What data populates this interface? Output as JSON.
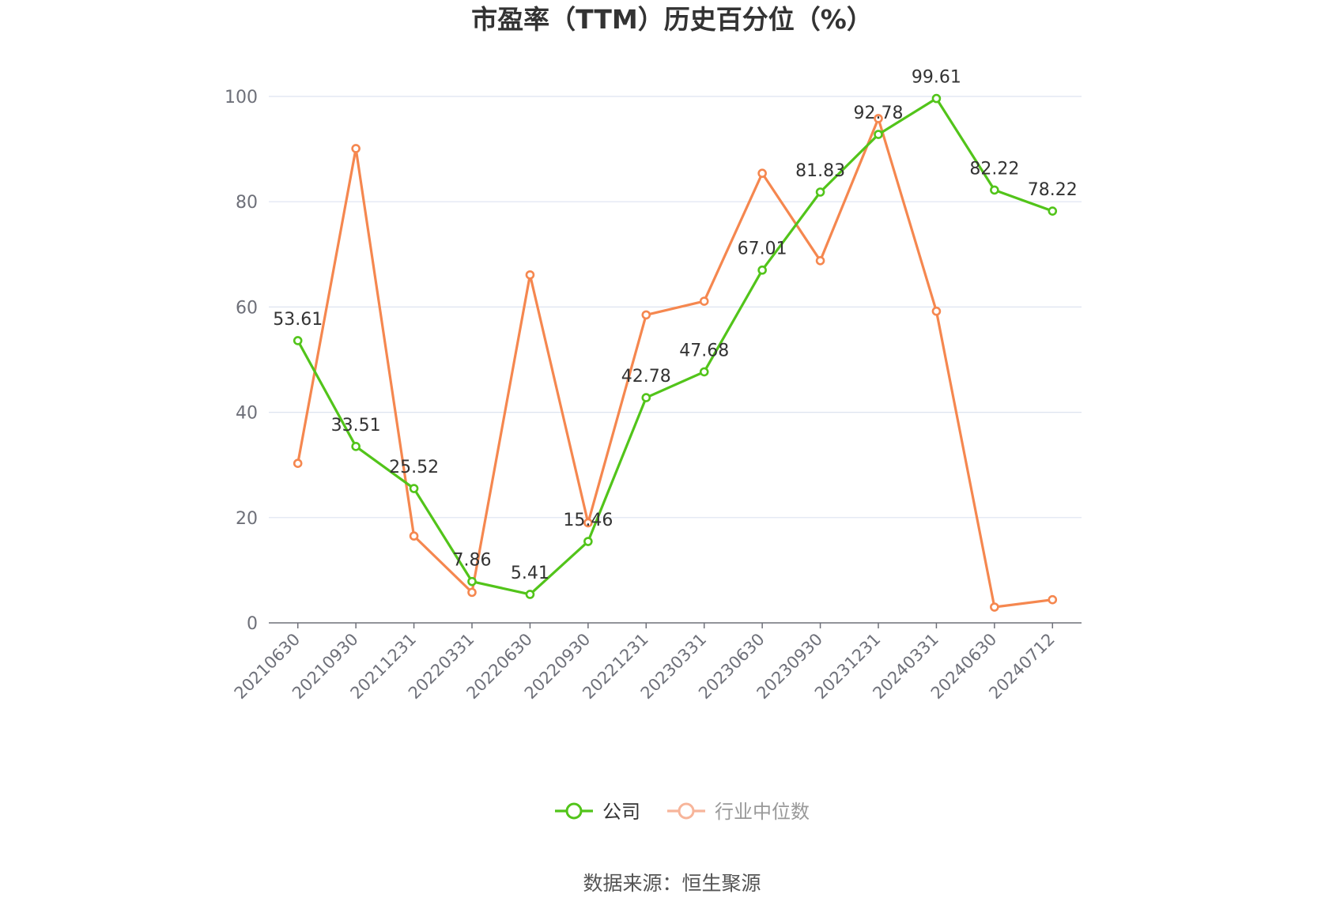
{
  "title": "市盈率（TTM）历史百分位（%）",
  "source": "数据来源：恒生聚源",
  "colors": {
    "company": "#52c41a",
    "industry": "#f5874f",
    "industry_legend": "#f7b59a",
    "grid": "#dde3f0",
    "axis": "#6e7079"
  },
  "chart_data": {
    "type": "line",
    "categories": [
      "20210630",
      "20210930",
      "20211231",
      "20220331",
      "20220630",
      "20220930",
      "20221231",
      "20230331",
      "20230630",
      "20230930",
      "20231231",
      "20240331",
      "20240630",
      "20240712"
    ],
    "ylim": [
      0,
      100
    ],
    "yticks": [
      0,
      20,
      40,
      60,
      80,
      100
    ],
    "grid": true,
    "legend_position": "bottom",
    "series": [
      {
        "name": "公司",
        "values": [
          53.61,
          33.51,
          25.52,
          7.86,
          5.41,
          15.46,
          42.78,
          47.68,
          67.01,
          81.83,
          92.78,
          99.61,
          82.22,
          78.22
        ],
        "labels": [
          "53.61",
          "33.51",
          "25.52",
          "7.86",
          "5.41",
          "15.46",
          "42.78",
          "47.68",
          "67.01",
          "81.83",
          "92.78",
          "99.61",
          "82.22",
          "78.22"
        ]
      },
      {
        "name": "行业中位数",
        "values": [
          30.3,
          90.1,
          16.5,
          5.8,
          66.1,
          19.0,
          58.5,
          61.1,
          85.4,
          68.8,
          95.8,
          59.2,
          3.0,
          4.4
        ]
      }
    ]
  }
}
